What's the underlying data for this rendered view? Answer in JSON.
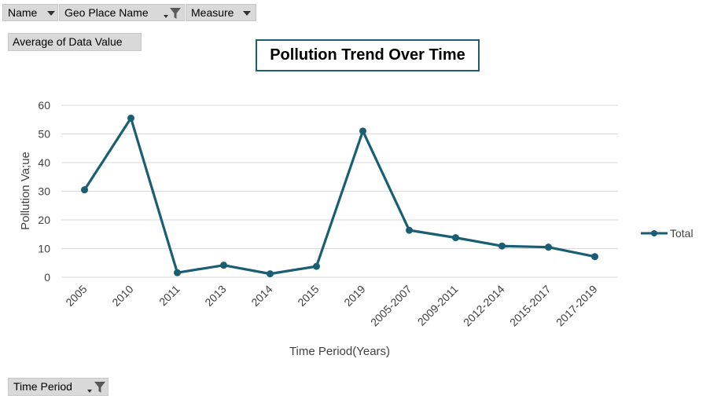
{
  "filters": {
    "name_label": "Name",
    "geo_label": "Geo Place Name",
    "measure_label": "Measure",
    "values_label": "Average of Data Value",
    "axis_field_label": "Time Period"
  },
  "colors": {
    "series": "#1a5e74",
    "grid": "#d9d9d9",
    "button": "#d9d9d9"
  },
  "icons": {
    "dropdown": "chevron-down-icon",
    "filter": "filter-icon"
  },
  "chart_data": {
    "type": "line",
    "title": "Pollution Trend Over Time",
    "xlabel": "Time Period(Years)",
    "ylabel": "Pollution Va;ue",
    "ylim": [
      0,
      60
    ],
    "yticks": [
      0,
      10,
      20,
      30,
      40,
      50,
      60
    ],
    "grid": true,
    "legend_position": "right",
    "categories": [
      "2005",
      "2010",
      "2011",
      "2013",
      "2014",
      "2015",
      "2019",
      "2005-2007",
      "2009-2011",
      "2012-2014",
      "2015-2017",
      "2017-2019"
    ],
    "series": [
      {
        "name": "Total",
        "values": [
          30.5,
          55.5,
          1.6,
          4.2,
          1.2,
          3.8,
          51.0,
          16.4,
          13.8,
          10.9,
          10.5,
          7.2
        ]
      }
    ]
  }
}
